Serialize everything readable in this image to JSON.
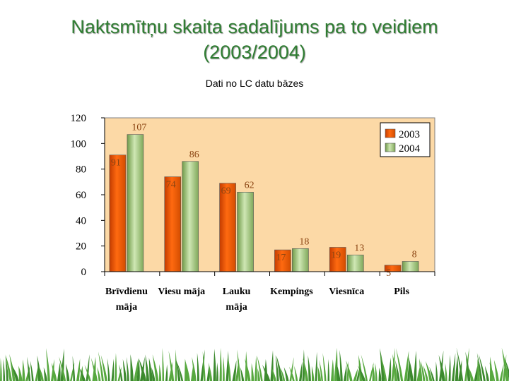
{
  "slide": {
    "title_line1": "Naktsmītņu skaita sadalījums pa to veidiem",
    "title_line2": "(2003/2004)",
    "subtitle": "Dati no LC datu bāzes"
  },
  "colors": {
    "title": "#2f7d32",
    "plot_bg": "#fcd9a6",
    "series_2003": "#ff6a10",
    "series_2004": "#9ccb70",
    "value_label": "#8b4513"
  },
  "chart_data": {
    "type": "bar",
    "categories": [
      "Brīvdienu māja",
      "Viesu māja",
      "Lauku māja",
      "Kempings",
      "Viesnīca",
      "Pils"
    ],
    "category_lines": [
      [
        "Brīvdienu",
        "māja"
      ],
      [
        "Viesu māja"
      ],
      [
        "Lauku",
        "māja"
      ],
      [
        "Kempings"
      ],
      [
        "Viesnīca"
      ],
      [
        "Pils"
      ]
    ],
    "series": [
      {
        "name": "2003",
        "values": [
          91,
          74,
          69,
          17,
          19,
          5
        ]
      },
      {
        "name": "2004",
        "values": [
          107,
          86,
          62,
          18,
          13,
          8
        ]
      }
    ],
    "ylim": [
      0,
      120
    ],
    "yticks": [
      0,
      20,
      40,
      60,
      80,
      100,
      120
    ],
    "grid": false,
    "legend": "top-right",
    "data_labels": true
  }
}
